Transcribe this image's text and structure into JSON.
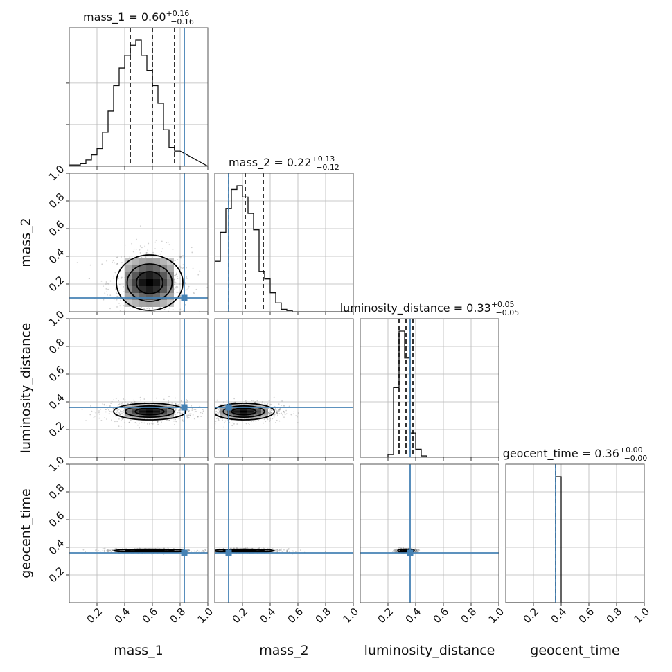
{
  "chart_data": {
    "type": "corner",
    "parameters": [
      {
        "name": "mass_1",
        "median": 0.6,
        "upper_err": 0.16,
        "lower_err": 0.16,
        "title": "mass_1 = 0.60",
        "title_sup": "+0.16",
        "title_sub": "−0.16",
        "truth": 0.83
      },
      {
        "name": "mass_2",
        "median": 0.22,
        "upper_err": 0.13,
        "lower_err": 0.12,
        "title": "mass_2 = 0.22",
        "title_sup": "+0.13",
        "title_sub": "−0.12",
        "truth": 0.1
      },
      {
        "name": "luminosity_distance",
        "median": 0.33,
        "upper_err": 0.05,
        "lower_err": 0.05,
        "title": "luminosity_distance = 0.33",
        "title_sup": "+0.05",
        "title_sub": "−0.05",
        "truth": 0.36
      },
      {
        "name": "geocent_time",
        "median": 0.36,
        "upper_err": 0.0,
        "lower_err": 0.0,
        "title": "geocent_time = 0.36",
        "title_sup": "+0.00",
        "title_sub": "−0.00",
        "truth": 0.36
      }
    ],
    "axis_range": [
      0,
      1
    ],
    "tick_values": [
      0.2,
      0.4,
      0.6,
      0.8,
      1.0
    ],
    "tick_labels": [
      "0.2",
      "0.4",
      "0.6",
      "0.8",
      "1.0"
    ],
    "grid": true,
    "quantile_lines": "16th, 50th and 84th percentiles (dashed)",
    "truth_color": "#4682b4",
    "contour_color": "#000000",
    "histograms": [
      {
        "parameter": "mass_1",
        "bin_width": 0.04,
        "density": [
          0.01,
          0.01,
          0.02,
          0.05,
          0.09,
          0.14,
          0.27,
          0.44,
          0.64,
          0.78,
          0.88,
          0.96,
          1.0,
          0.88,
          0.76,
          0.64,
          0.5,
          0.29,
          0.15,
          0.12
        ]
      },
      {
        "parameter": "mass_2",
        "bin_width": 0.04,
        "density": [
          0.4,
          0.63,
          0.82,
          0.97,
          1.0,
          0.91,
          0.78,
          0.65,
          0.32,
          0.26,
          0.15,
          0.07,
          0.02,
          0.01,
          0,
          0,
          0,
          0,
          0,
          0
        ]
      },
      {
        "parameter": "luminosity_distance",
        "bin_width": 0.04,
        "density": [
          0,
          0,
          0,
          0,
          0,
          0.02,
          0.52,
          0.94,
          0.74,
          0.18,
          0.06,
          0.01,
          0,
          0,
          0,
          0,
          0,
          0,
          0,
          0
        ]
      },
      {
        "parameter": "geocent_time",
        "bin_width": 0.04,
        "density": [
          0,
          0,
          0,
          0,
          0,
          0,
          0,
          0,
          0,
          1.0,
          0,
          0,
          0,
          0,
          0,
          0,
          0,
          0,
          0,
          0
        ]
      }
    ],
    "pairs": [
      {
        "x": "mass_1",
        "y": "mass_2",
        "center": [
          0.58,
          0.21
        ],
        "spread": [
          0.12,
          0.1
        ]
      },
      {
        "x": "mass_1",
        "y": "luminosity_distance",
        "center": [
          0.58,
          0.33
        ],
        "spread": [
          0.13,
          0.03
        ]
      },
      {
        "x": "mass_2",
        "y": "luminosity_distance",
        "center": [
          0.21,
          0.33
        ],
        "spread": [
          0.11,
          0.03
        ]
      },
      {
        "x": "mass_1",
        "y": "geocent_time",
        "center": [
          0.58,
          0.375
        ],
        "spread": [
          0.13,
          0.006
        ]
      },
      {
        "x": "mass_2",
        "y": "geocent_time",
        "center": [
          0.21,
          0.375
        ],
        "spread": [
          0.11,
          0.006
        ]
      },
      {
        "x": "luminosity_distance",
        "y": "geocent_time",
        "center": [
          0.33,
          0.375
        ],
        "spread": [
          0.03,
          0.006
        ]
      }
    ]
  }
}
